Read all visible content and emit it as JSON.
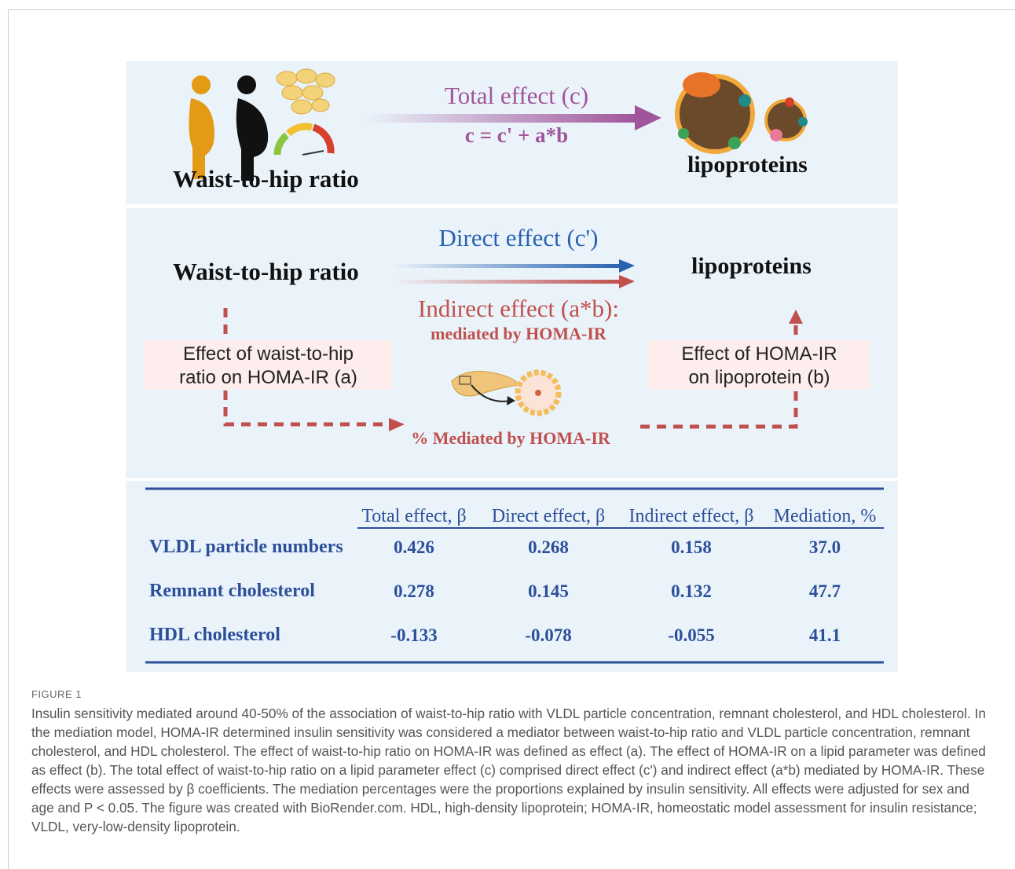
{
  "panel1": {
    "left_label": "Waist-to-hip ratio",
    "arrow_label": "Total effect (c)",
    "formula": "c = c' + a*b",
    "right_label": "lipoproteins"
  },
  "panel2": {
    "left_label": "Waist-to-hip ratio",
    "right_label": "lipoproteins",
    "direct": "Direct effect (c')",
    "indirect": "Indirect effect (a*b):",
    "indirect_sub": "mediated by HOMA-IR",
    "box_a": "Effect of waist-to-hip ratio on HOMA-IR (a)",
    "box_b": "Effect of HOMA-IR on lipoprotein (b)",
    "mediated": "% Mediated by HOMA-IR"
  },
  "table": {
    "columns": [
      "Total effect, β",
      "Direct effect, β",
      "Indirect effect, β",
      "Mediation, %"
    ],
    "rows": [
      {
        "label": "VLDL particle numbers",
        "cells": [
          "0.426",
          "0.268",
          "0.158",
          "37.0"
        ]
      },
      {
        "label": "Remnant cholesterol",
        "cells": [
          "0.278",
          "0.145",
          "0.132",
          "47.7"
        ]
      },
      {
        "label": "HDL cholesterol",
        "cells": [
          "-0.133",
          "-0.078",
          "-0.055",
          "41.1"
        ]
      }
    ]
  },
  "caption": {
    "label": "FIGURE 1",
    "text": "Insulin sensitivity mediated around 40-50% of the association of waist-to-hip ratio with VLDL particle concentration, remnant cholesterol, and HDL cholesterol. In the mediation model, HOMA-IR determined insulin sensitivity was considered a mediator between waist-to-hip ratio and VLDL particle concentration, remnant cholesterol, and HDL cholesterol. The effect of waist-to-hip ratio on HOMA-IR was defined as effect (a). The effect of HOMA-IR on a lipid parameter was defined as effect (b). The total effect of waist-to-hip ratio on a lipid parameter effect (c) comprised direct effect (c') and indirect effect (a*b) mediated by HOMA-IR. These effects were assessed by β coefficients. The mediation percentages were the proportions explained by insulin sensitivity. All effects were adjusted for sex and age and P < 0.05. The figure was created with BioRender.com. HDL, high-density lipoprotein; HOMA-IR, homeostatic model assessment for insulin resistance; VLDL, very-low-density lipoprotein."
  }
}
